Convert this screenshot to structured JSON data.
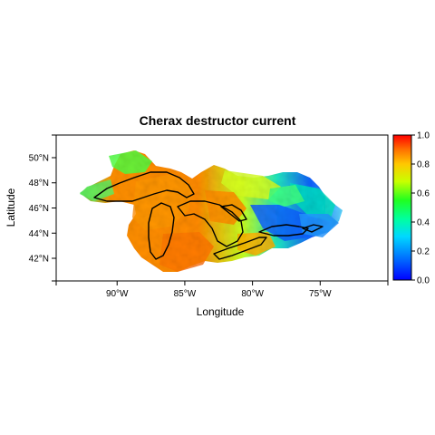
{
  "map": {
    "title": "Cherax destructor current",
    "xlabel": "Longitude",
    "ylabel": "Latitude",
    "x_ticks": [
      "90°W",
      "85°W",
      "80°W",
      "75°W"
    ],
    "x_tick_values": [
      -90,
      -85,
      -80,
      -75
    ],
    "y_ticks": [
      "42°N",
      "44°N",
      "46°N",
      "48°N",
      "50°N"
    ],
    "y_tick_values": [
      42,
      44,
      46,
      48,
      50
    ],
    "xlim": [
      -94.5,
      -70
    ],
    "ylim": [
      40.2,
      51.8
    ],
    "colorbar": {
      "ticks": [
        "0.0",
        "0.2",
        "0.4",
        "0.6",
        "0.8",
        "1.0"
      ],
      "tick_values": [
        0,
        0.2,
        0.4,
        0.6,
        0.8,
        1.0
      ],
      "range": [
        0,
        1
      ],
      "colors": [
        "#0000ff",
        "#00a0ff",
        "#00ffd0",
        "#00ff40",
        "#c0ff00",
        "#ffd000",
        "#ff8000",
        "#ff0000"
      ]
    }
  }
}
